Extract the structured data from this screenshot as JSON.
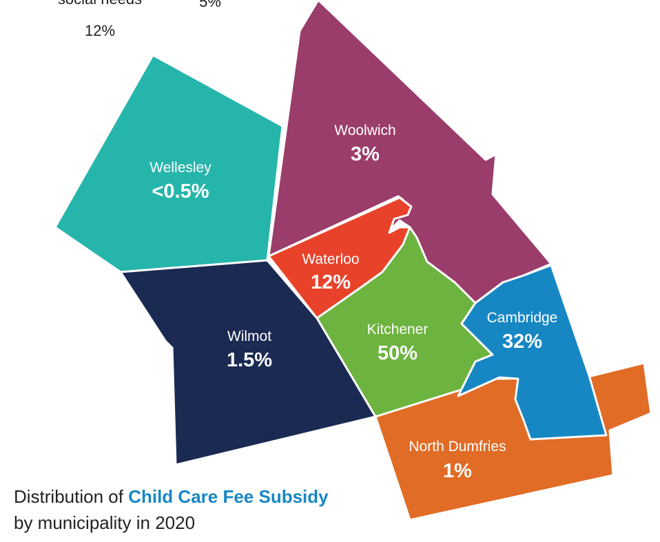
{
  "header_fragments": [
    {
      "label": "social needs",
      "value": "12%"
    },
    {
      "value": "5%"
    }
  ],
  "regions": [
    {
      "name": "Wellesley",
      "value": "<0.5%",
      "color": "#26b5ab"
    },
    {
      "name": "Woolwich",
      "value": "3%",
      "color": "#9b3d6a"
    },
    {
      "name": "Waterloo",
      "value": "12%",
      "color": "#e8432a"
    },
    {
      "name": "Kitchener",
      "value": "50%",
      "color": "#6db33f"
    },
    {
      "name": "Wilmot",
      "value": "1.5%",
      "color": "#1b2a52"
    },
    {
      "name": "North Dumfries",
      "value": "1%",
      "color": "#e06c26"
    },
    {
      "name": "Cambridge",
      "value": "32%",
      "color": "#1787c3"
    }
  ],
  "caption": {
    "prefix": "Distribution of",
    "highlight": "Child Care Fee Subsidy",
    "suffix": "by municipality in 2020"
  }
}
